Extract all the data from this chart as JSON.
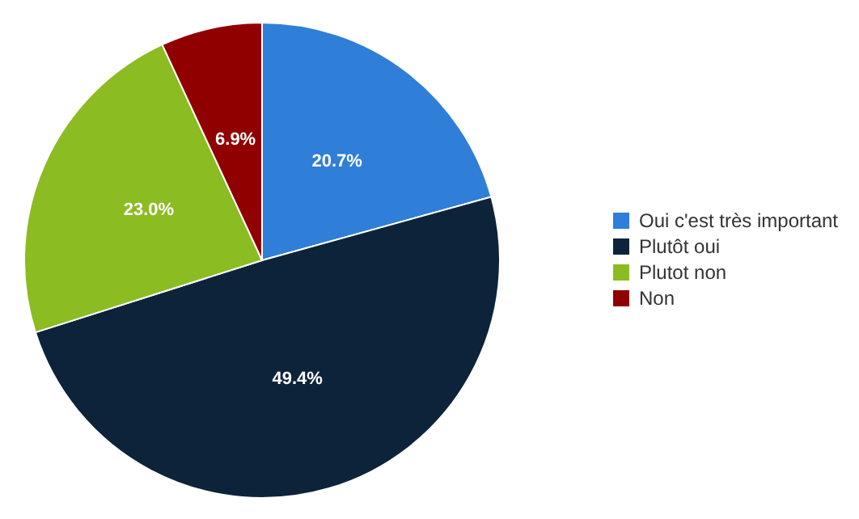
{
  "chart_data": {
    "type": "pie",
    "categories": [
      "Oui c'est très important",
      "Plutôt oui",
      "Plutot non",
      "Non"
    ],
    "values": [
      20.7,
      49.4,
      23.0,
      6.9
    ],
    "colors": [
      "#2f7ed8",
      "#0d233a",
      "#8bbc21",
      "#910000"
    ],
    "value_labels": [
      "20.7%",
      "49.4%",
      "23.0%",
      "6.9%"
    ],
    "legend": "right"
  }
}
